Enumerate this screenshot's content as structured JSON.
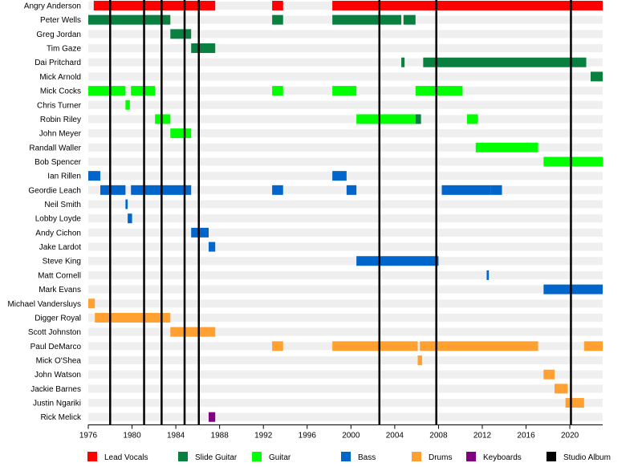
{
  "chart_data": {
    "type": "timeline",
    "x_range": [
      1976,
      2023
    ],
    "x_ticks": [
      "1976",
      "1980",
      "1984",
      "1988",
      "1992",
      "1996",
      "2000",
      "2004",
      "2008",
      "2012",
      "2016",
      "2020"
    ],
    "row_stripes": true,
    "colors": {
      "Lead Vocals": "#ff0000",
      "Slide Guitar": "#0a8040",
      "Guitar": "#00ff00",
      "Bass": "#0066cc",
      "Drums": "#ffa030",
      "Keyboards": "#800080",
      "Studio Album": "#000000"
    },
    "legend": [
      {
        "label": "Lead Vocals",
        "color": "#ff0000"
      },
      {
        "label": "Slide Guitar",
        "color": "#0a8040"
      },
      {
        "label": "Guitar",
        "color": "#00ff00"
      },
      {
        "label": "Bass",
        "color": "#0066cc"
      },
      {
        "label": "Drums",
        "color": "#ffa030"
      },
      {
        "label": "Keyboards",
        "color": "#800080"
      },
      {
        "label": "Studio Album",
        "color": "#000000"
      }
    ],
    "studio_albums": [
      1978.0,
      1981.1,
      1982.7,
      1984.8,
      1986.1,
      2002.6,
      2007.8,
      2020.1
    ],
    "members": [
      {
        "name": "Angry Anderson",
        "spans": [
          {
            "role": "Lead Vocals",
            "start": 1976.5,
            "end": 1987.6
          },
          {
            "role": "Lead Vocals",
            "start": 1992.8,
            "end": 1993.8
          },
          {
            "role": "Lead Vocals",
            "start": 1998.3,
            "end": 2023
          }
        ]
      },
      {
        "name": "Peter Wells",
        "spans": [
          {
            "role": "Slide Guitar",
            "start": 1976,
            "end": 1983.5
          },
          {
            "role": "Slide Guitar",
            "start": 1992.8,
            "end": 1993.8
          },
          {
            "role": "Slide Guitar",
            "start": 1998.3,
            "end": 2004.6
          },
          {
            "role": "Slide Guitar",
            "start": 2004.8,
            "end": 2005.9
          }
        ]
      },
      {
        "name": "Greg Jordan",
        "spans": [
          {
            "role": "Slide Guitar",
            "start": 1983.5,
            "end": 1985.4
          }
        ]
      },
      {
        "name": "Tim Gaze",
        "spans": [
          {
            "role": "Slide Guitar",
            "start": 1985.4,
            "end": 1987.6
          }
        ]
      },
      {
        "name": "Dai Pritchard",
        "spans": [
          {
            "role": "Slide Guitar",
            "start": 2004.6,
            "end": 2004.9
          },
          {
            "role": "Slide Guitar",
            "start": 2006.6,
            "end": 2021.5
          }
        ]
      },
      {
        "name": "Mick Arnold",
        "spans": [
          {
            "role": "Slide Guitar",
            "start": 2021.9,
            "end": 2023
          }
        ]
      },
      {
        "name": "Mick Cocks",
        "spans": [
          {
            "role": "Guitar",
            "start": 1976,
            "end": 1979.4
          },
          {
            "role": "Guitar",
            "start": 1979.9,
            "end": 1982.1
          },
          {
            "role": "Guitar",
            "start": 1992.8,
            "end": 1993.8
          },
          {
            "role": "Guitar",
            "start": 1998.3,
            "end": 2000.5
          },
          {
            "role": "Guitar",
            "start": 2005.9,
            "end": 2010.2
          }
        ]
      },
      {
        "name": "Chris Turner",
        "spans": [
          {
            "role": "Guitar",
            "start": 1979.4,
            "end": 1979.8
          }
        ]
      },
      {
        "name": "Robin Riley",
        "spans": [
          {
            "role": "Guitar",
            "start": 1982.1,
            "end": 1983.5
          },
          {
            "role": "Guitar",
            "start": 2000.5,
            "end": 2005.9
          },
          {
            "role": "Slide Guitar",
            "start": 2005.9,
            "end": 2006.4
          },
          {
            "role": "Guitar",
            "start": 2010.6,
            "end": 2011.6
          }
        ]
      },
      {
        "name": "John Meyer",
        "spans": [
          {
            "role": "Guitar",
            "start": 1983.5,
            "end": 1985.4
          }
        ]
      },
      {
        "name": "Randall Waller",
        "spans": [
          {
            "role": "Guitar",
            "start": 2011.4,
            "end": 2017.1
          }
        ]
      },
      {
        "name": "Bob Spencer",
        "spans": [
          {
            "role": "Guitar",
            "start": 2017.6,
            "end": 2023
          }
        ]
      },
      {
        "name": "Ian Rillen",
        "spans": [
          {
            "role": "Bass",
            "start": 1976,
            "end": 1977.1
          },
          {
            "role": "Bass",
            "start": 1998.3,
            "end": 1999.6
          }
        ]
      },
      {
        "name": "Geordie Leach",
        "spans": [
          {
            "role": "Bass",
            "start": 1977.1,
            "end": 1979.4
          },
          {
            "role": "Bass",
            "start": 1979.9,
            "end": 1985.4
          },
          {
            "role": "Bass",
            "start": 1992.8,
            "end": 1993.8
          },
          {
            "role": "Bass",
            "start": 1999.6,
            "end": 2000.5
          },
          {
            "role": "Bass",
            "start": 2008.3,
            "end": 2012.8
          },
          {
            "role": "Bass",
            "start": 2012.8,
            "end": 2013.8
          }
        ]
      },
      {
        "name": "Neil Smith",
        "spans": [
          {
            "role": "Bass",
            "start": 1979.4,
            "end": 1979.6
          }
        ]
      },
      {
        "name": "Lobby Loyde",
        "spans": [
          {
            "role": "Bass",
            "start": 1979.6,
            "end": 1980.0
          }
        ]
      },
      {
        "name": "Andy Cichon",
        "spans": [
          {
            "role": "Bass",
            "start": 1985.4,
            "end": 1987.0
          }
        ]
      },
      {
        "name": "Jake Lardot",
        "spans": [
          {
            "role": "Bass",
            "start": 1987.0,
            "end": 1987.6
          }
        ]
      },
      {
        "name": "Steve King",
        "spans": [
          {
            "role": "Bass",
            "start": 2000.5,
            "end": 2008.0
          }
        ]
      },
      {
        "name": "Matt Cornell",
        "spans": [
          {
            "role": "Bass",
            "start": 2012.4,
            "end": 2012.6
          }
        ]
      },
      {
        "name": "Mark Evans",
        "spans": [
          {
            "role": "Bass",
            "start": 2017.6,
            "end": 2023
          }
        ]
      },
      {
        "name": "Michael Vandersluys",
        "spans": [
          {
            "role": "Drums",
            "start": 1976,
            "end": 1976.6
          }
        ]
      },
      {
        "name": "Digger Royal",
        "spans": [
          {
            "role": "Drums",
            "start": 1976.6,
            "end": 1983.5
          }
        ]
      },
      {
        "name": "Scott Johnston",
        "spans": [
          {
            "role": "Drums",
            "start": 1983.5,
            "end": 1987.6
          }
        ]
      },
      {
        "name": "Paul DeMarco",
        "spans": [
          {
            "role": "Drums",
            "start": 1992.8,
            "end": 1993.8
          },
          {
            "role": "Drums",
            "start": 1998.3,
            "end": 2006.1
          },
          {
            "role": "Drums",
            "start": 2006.3,
            "end": 2017.1
          },
          {
            "role": "Drums",
            "start": 2021.3,
            "end": 2023
          }
        ]
      },
      {
        "name": "Mick O'Shea",
        "spans": [
          {
            "role": "Drums",
            "start": 2006.1,
            "end": 2006.5
          }
        ]
      },
      {
        "name": "John Watson",
        "spans": [
          {
            "role": "Drums",
            "start": 2017.6,
            "end": 2018.6
          }
        ]
      },
      {
        "name": "Jackie Barnes",
        "spans": [
          {
            "role": "Drums",
            "start": 2018.6,
            "end": 2019.8
          }
        ]
      },
      {
        "name": "Justin Ngariki",
        "spans": [
          {
            "role": "Drums",
            "start": 2019.6,
            "end": 2021.3
          }
        ]
      },
      {
        "name": "Rick Melick",
        "spans": [
          {
            "role": "Keyboards",
            "start": 1987.0,
            "end": 1987.6
          }
        ]
      }
    ]
  }
}
